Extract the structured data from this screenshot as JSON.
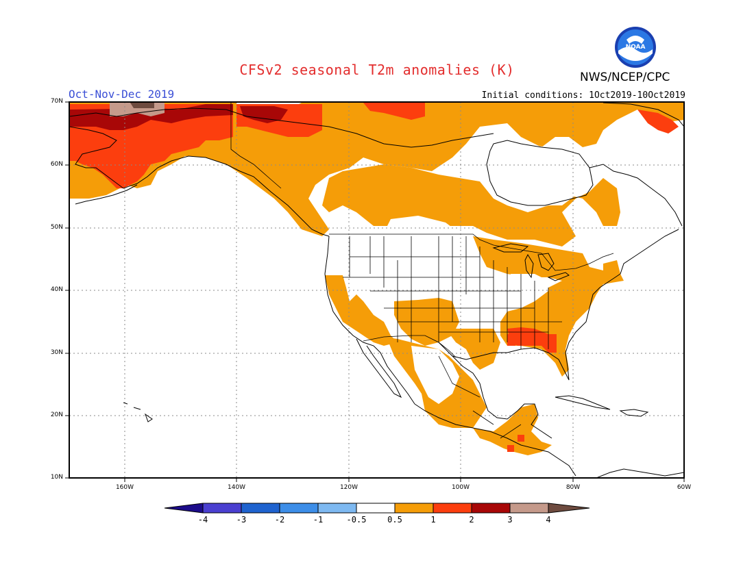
{
  "header": {
    "title": "CFSv2 seasonal T2m anomalies (K)",
    "agency": "NWS/NCEP/CPC",
    "season": "Oct-Nov-Dec 2019",
    "initial_conditions": "Initial conditions: 1Oct2019-10Oct2019",
    "logo_text": "NOAA"
  },
  "map": {
    "projection": "lat-lon",
    "lon_range": [
      -170,
      -60
    ],
    "lat_range": [
      10,
      70
    ],
    "lat_labels": [
      "70N",
      "60N",
      "50N",
      "40N",
      "30N",
      "20N",
      "10N"
    ],
    "lon_labels": [
      "160W",
      "140W",
      "120W",
      "100W",
      "80W",
      "60W"
    ],
    "colors": {
      "ocean_land": "#ffffff",
      "coast": "#000000",
      "grid": "#7f7f7f"
    }
  },
  "colorbar": {
    "labels": [
      "-4",
      "-3",
      "-2",
      "-1",
      "-0.5",
      "0.5",
      "1",
      "2",
      "3",
      "4"
    ],
    "colors": [
      "#1c0c8a",
      "#4a3fd0",
      "#1f63cf",
      "#3d8ee8",
      "#7eb9f1",
      "#ffffff",
      "#f59d08",
      "#fc3e0e",
      "#a80707",
      "#c59a8b",
      "#6e4b3f"
    ]
  },
  "anomaly_regions": [
    {
      "category": "0.5-1",
      "color": "#f59d08",
      "area": "Alaska interior and Yukon"
    },
    {
      "category": "1-2",
      "color": "#fc3e0e",
      "area": "Western and northern Alaska"
    },
    {
      "category": "2-3",
      "color": "#a80707",
      "area": "Northwestern Alaska"
    },
    {
      "category": "3-4",
      "color": "#c59a8b",
      "area": "Far northwest Alaska coast"
    },
    {
      "category": "0.5-1",
      "color": "#f59d08",
      "area": "Western and central Canada"
    },
    {
      "category": "1-2",
      "color": "#fc3e0e",
      "area": "Canadian Arctic coast"
    },
    {
      "category": "0.5-1",
      "color": "#f59d08",
      "area": "Great Lakes and southeastern US"
    },
    {
      "category": "1-2",
      "color": "#fc3e0e",
      "area": "Deep South US"
    },
    {
      "category": "0.5-1",
      "color": "#f59d08",
      "area": "US Southwest and California"
    },
    {
      "category": "0.5-1",
      "color": "#f59d08",
      "area": "Mexico and Central America"
    }
  ]
}
